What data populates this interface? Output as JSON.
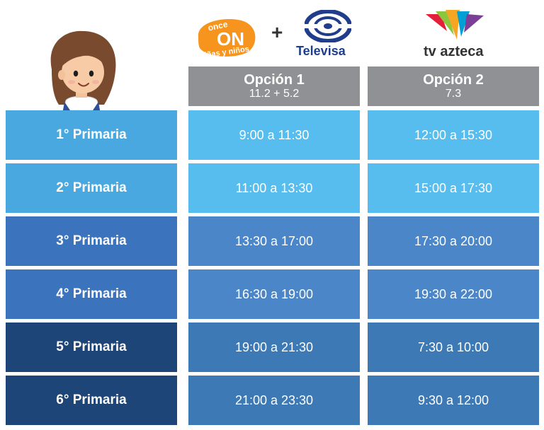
{
  "logos": {
    "once": {
      "line1": "once",
      "line2": "ON",
      "line3": "niñas y niños"
    },
    "plus": "+",
    "televisa": "Televisa",
    "tvazteca": "tv azteca"
  },
  "headers": [
    {
      "title": "Opción 1",
      "channels": "11.2  +  5.2"
    },
    {
      "title": "Opción 2",
      "channels": "7.3"
    }
  ],
  "rows": [
    {
      "grade": "1° Primaria",
      "option1": "9:00 a 11:30",
      "option2": "12:00 a 15:30"
    },
    {
      "grade": "2° Primaria",
      "option1": "11:00 a 13:30",
      "option2": "15:00 a 17:30"
    },
    {
      "grade": "3° Primaria",
      "option1": "13:30 a 17:00",
      "option2": "17:30 a 20:00"
    },
    {
      "grade": "4° Primaria",
      "option1": "16:30 a 19:00",
      "option2": "19:30 a 22:00"
    },
    {
      "grade": "5° Primaria",
      "option1": "19:00 a 21:30",
      "option2": "7:30 a 10:00"
    },
    {
      "grade": "6° Primaria",
      "option1": "21:00 a 23:30",
      "option2": "9:30 a 12:00"
    }
  ],
  "colors": {
    "header_gray": "#8f9194",
    "grade": [
      "#4aa8e0",
      "#4aa8e0",
      "#3b73bd",
      "#3b73bd",
      "#1d4577",
      "#1d4577"
    ],
    "option1": [
      "#56bdee",
      "#56bdee",
      "#4a86c8",
      "#4a86c8",
      "#3d7ab5",
      "#3d7ab5"
    ],
    "option2": [
      "#56bdee",
      "#56bdee",
      "#4a86c8",
      "#4a86c8",
      "#3d7ab5",
      "#3d7ab5"
    ]
  }
}
